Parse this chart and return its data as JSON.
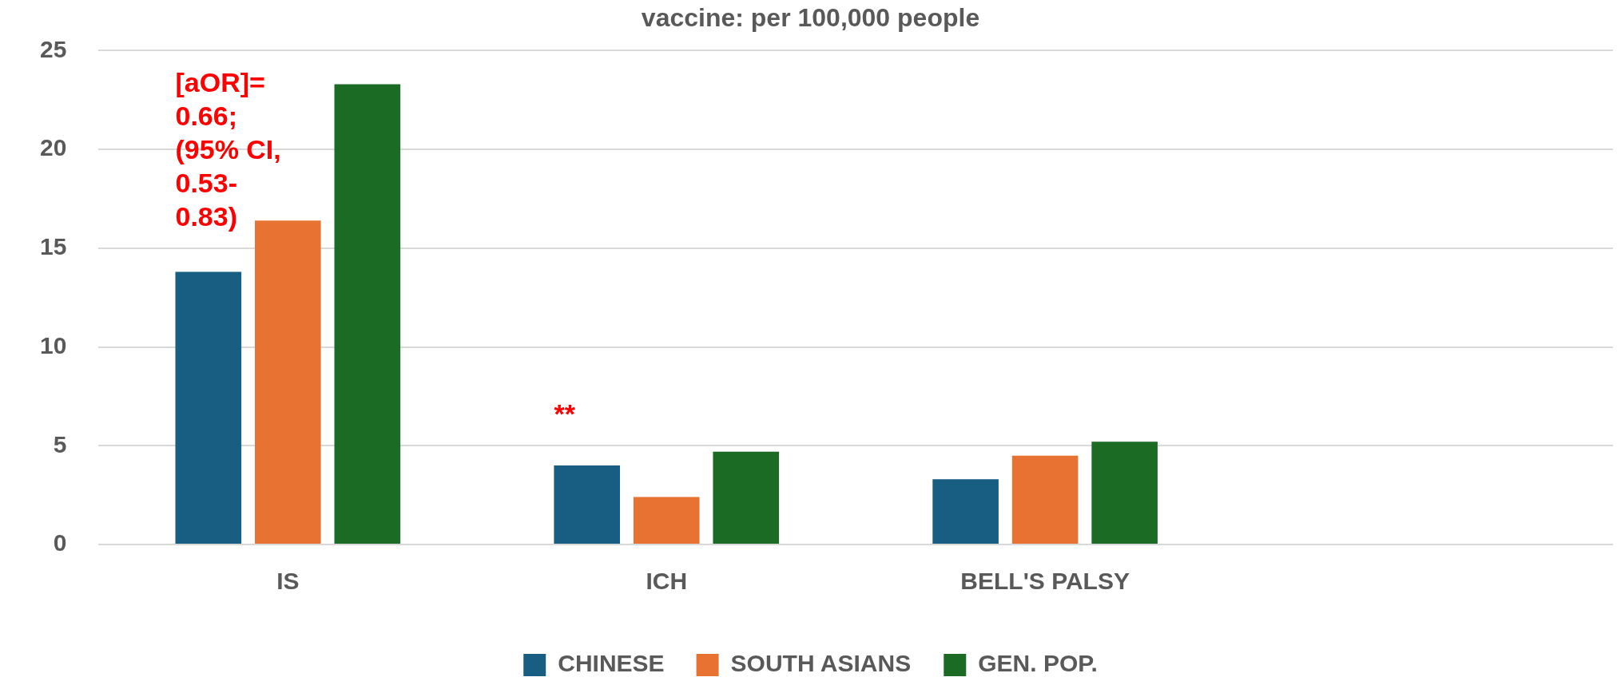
{
  "chart_data": {
    "type": "bar",
    "title": "vaccine: per 100,000 people",
    "categories": [
      "IS",
      "ICH",
      "BELL'S PALSY",
      null
    ],
    "series": [
      {
        "name": "CHINESE",
        "color": "#175e82",
        "values": [
          13.8,
          4.0,
          3.3,
          null
        ]
      },
      {
        "name": "SOUTH ASIANS",
        "color": "#e87232",
        "values": [
          16.4,
          2.4,
          4.5,
          null
        ]
      },
      {
        "name": "GEN. POP.",
        "color": "#1c6b24",
        "values": [
          23.3,
          4.7,
          5.2,
          null
        ]
      }
    ],
    "ylim": [
      0,
      25
    ],
    "yticks": [
      0,
      5,
      10,
      15,
      20,
      25
    ],
    "grid": "y",
    "legend": "bottom",
    "annotations": [
      "[aOR]= 0.66; (95% CI, 0.53-0.83)",
      "**"
    ]
  }
}
